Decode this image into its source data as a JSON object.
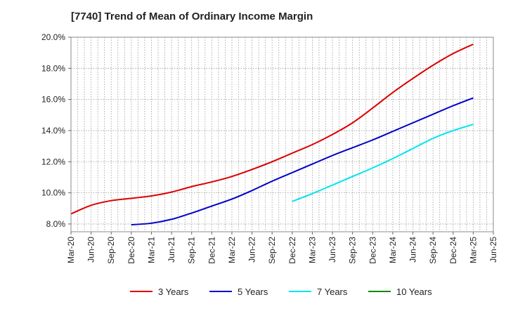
{
  "title": "[7740]  Trend of Mean of Ordinary Income Margin",
  "chart_data": {
    "type": "line",
    "title": "[7740]  Trend of Mean of Ordinary Income Margin",
    "xlabel": "",
    "ylabel": "",
    "x": [
      "Mar-20",
      "Jun-20",
      "Sep-20",
      "Dec-20",
      "Mar-21",
      "Jun-21",
      "Sep-21",
      "Dec-21",
      "Mar-22",
      "Jun-22",
      "Sep-22",
      "Dec-22",
      "Mar-23",
      "Jun-23",
      "Sep-23",
      "Dec-23",
      "Mar-24",
      "Jun-24",
      "Sep-24",
      "Dec-24",
      "Mar-25",
      "Jun-25"
    ],
    "ylim": [
      7.5,
      20.0
    ],
    "yticks": [
      8,
      10,
      12,
      14,
      16,
      18,
      20
    ],
    "ytick_labels": [
      "8.0%",
      "10.0%",
      "12.0%",
      "14.0%",
      "16.0%",
      "18.0%",
      "20.0%"
    ],
    "grid": true,
    "legend_position": "bottom",
    "series": [
      {
        "name": "3 Years",
        "color": "#dd0000",
        "values": [
          8.65,
          9.2,
          9.5,
          9.65,
          9.8,
          10.05,
          10.4,
          10.7,
          11.05,
          11.5,
          12.0,
          12.55,
          13.1,
          13.75,
          14.5,
          15.45,
          16.45,
          17.35,
          18.2,
          18.95,
          19.55,
          null
        ]
      },
      {
        "name": "5 Years",
        "color": "#0000cc",
        "values": [
          null,
          null,
          null,
          7.95,
          8.05,
          8.3,
          8.7,
          9.15,
          9.6,
          10.15,
          10.75,
          11.3,
          11.85,
          12.4,
          12.9,
          13.4,
          13.95,
          14.5,
          15.05,
          15.6,
          16.1,
          null
        ]
      },
      {
        "name": "7 Years",
        "color": "#00e5ee",
        "values": [
          null,
          null,
          null,
          null,
          null,
          null,
          null,
          null,
          null,
          null,
          null,
          9.45,
          9.95,
          10.5,
          11.05,
          11.6,
          12.2,
          12.85,
          13.5,
          14.0,
          14.4,
          null
        ]
      },
      {
        "name": "10 Years",
        "color": "#118811",
        "values": [
          null,
          null,
          null,
          null,
          null,
          null,
          null,
          null,
          null,
          null,
          null,
          null,
          null,
          null,
          null,
          null,
          null,
          null,
          null,
          null,
          null,
          null
        ]
      }
    ]
  }
}
